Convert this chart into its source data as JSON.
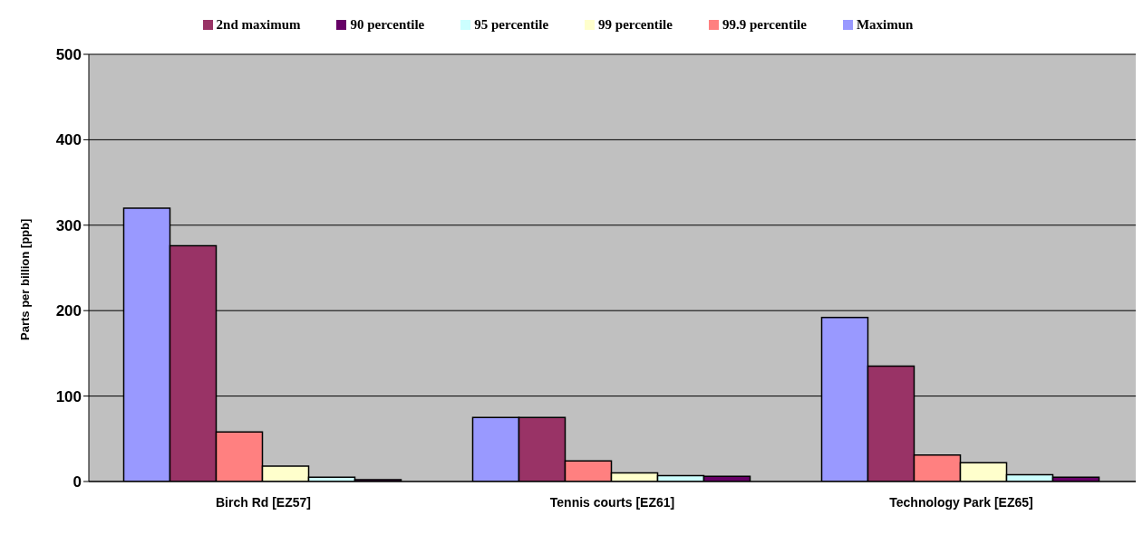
{
  "chart_data": {
    "type": "bar",
    "ylabel": "Parts per billion [ppb]",
    "categories": [
      "Birch Rd [EZ57]",
      "Tennis courts [EZ61]",
      "Technology Park [EZ65]"
    ],
    "series": [
      {
        "name": "Maximun",
        "color": "#9999ff",
        "values": [
          320,
          75,
          192
        ]
      },
      {
        "name": "2nd maximum",
        "color": "#993366",
        "values": [
          276,
          75,
          135
        ]
      },
      {
        "name": "99.9 percentile",
        "color": "#ff8080",
        "values": [
          58,
          24,
          31
        ]
      },
      {
        "name": "99 percentile",
        "color": "#ffffcc",
        "values": [
          18,
          10,
          22
        ]
      },
      {
        "name": "95 percentile",
        "color": "#ccffff",
        "values": [
          5,
          7,
          8
        ]
      },
      {
        "name": "90 percentile",
        "color": "#660066",
        "values": [
          2,
          6,
          5
        ]
      }
    ],
    "ylim": [
      0,
      500
    ],
    "yticks": [
      0,
      100,
      200,
      300,
      400,
      500
    ],
    "grid": "y",
    "legend": "top"
  }
}
